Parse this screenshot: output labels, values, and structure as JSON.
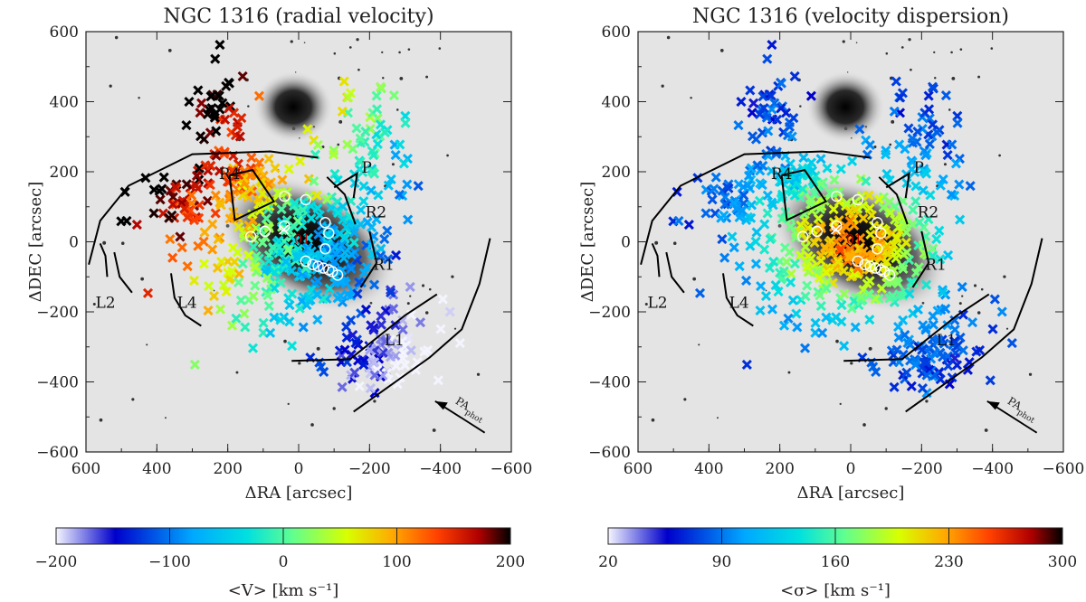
{
  "chart_data": [
    {
      "type": "scatter",
      "title": "NGC 1316 (radial velocity)",
      "xlabel": "ΔRA [arcsec]",
      "ylabel": "ΔDEC [arcsec]",
      "xlim": [
        600,
        -600
      ],
      "ylim": [
        -600,
        600
      ],
      "xticks": [
        600,
        400,
        200,
        0,
        -200,
        -400,
        -600
      ],
      "yticks": [
        -600,
        -400,
        -200,
        0,
        200,
        400,
        600
      ],
      "xtick_labels": [
        "600",
        "400",
        "200",
        "0",
        "−200",
        "−400",
        "−600"
      ],
      "ytick_labels": [
        "−600",
        "−400",
        "−200",
        "0",
        "200",
        "400",
        "600"
      ],
      "quantity": "velocity",
      "colorbar": {
        "range": [
          -200,
          200
        ],
        "ticks": [
          -200,
          -100,
          0,
          100,
          200
        ],
        "tick_labels": [
          "−200",
          "−100",
          "0",
          "100",
          "200"
        ],
        "label": "<V> [km s⁻¹]"
      },
      "region_labels": [
        "R4",
        "P",
        "R2",
        "R1",
        "L2",
        "L4",
        "L1"
      ],
      "annotation": "PA",
      "annotation_sub": "phot",
      "marker_label": "01"
    },
    {
      "type": "scatter",
      "title": "NGC 1316 (velocity dispersion)",
      "xlabel": "ΔRA [arcsec]",
      "ylabel": "ΔDEC [arcsec]",
      "xlim": [
        600,
        -600
      ],
      "ylim": [
        -600,
        600
      ],
      "xticks": [
        600,
        400,
        200,
        0,
        -200,
        -400,
        -600
      ],
      "yticks": [
        -600,
        -400,
        -200,
        0,
        200,
        400,
        600
      ],
      "xtick_labels": [
        "600",
        "400",
        "200",
        "0",
        "−200",
        "−400",
        "−600"
      ],
      "ytick_labels": [
        "−600",
        "−400",
        "−200",
        "0",
        "200",
        "400",
        "600"
      ],
      "quantity": "dispersion",
      "colorbar": {
        "range": [
          20,
          300
        ],
        "ticks": [
          20,
          90,
          160,
          230,
          300
        ],
        "tick_labels": [
          "20",
          "90",
          "160",
          "230",
          "300"
        ],
        "label": "<σ> [km s⁻¹]"
      },
      "region_labels": [
        "R4",
        "P",
        "R2",
        "R1",
        "L2",
        "L4",
        "L1"
      ],
      "annotation": "PA",
      "annotation_sub": "phot",
      "marker_label": "01"
    }
  ]
}
